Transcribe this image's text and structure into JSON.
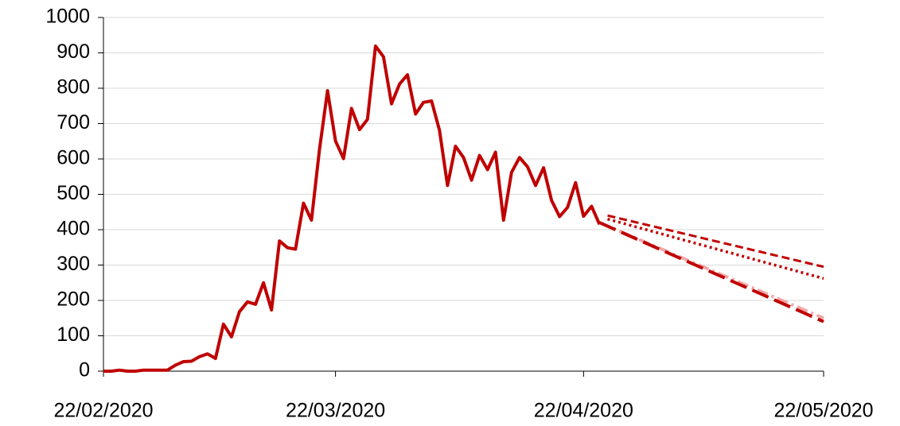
{
  "chart_data": {
    "type": "line",
    "xlim": [
      "22/02/2020",
      "22/05/2020"
    ],
    "xticks": [
      "22/02/2020",
      "22/03/2020",
      "22/04/2020",
      "22/05/2020"
    ],
    "ylim": [
      0,
      1000
    ],
    "yticks": [
      0,
      100,
      200,
      300,
      400,
      500,
      600,
      700,
      800,
      900,
      1000
    ],
    "grid": true,
    "series": [
      {
        "color": "#c00000",
        "dash": "solid",
        "x": [
          "22/02/2020",
          "23/02/2020",
          "24/02/2020",
          "25/02/2020",
          "26/02/2020",
          "27/02/2020",
          "28/02/2020",
          "29/02/2020",
          "01/03/2020",
          "02/03/2020",
          "03/03/2020",
          "04/03/2020",
          "05/03/2020",
          "06/03/2020",
          "07/03/2020",
          "08/03/2020",
          "09/03/2020",
          "10/03/2020",
          "11/03/2020",
          "12/03/2020",
          "13/03/2020",
          "14/03/2020",
          "15/03/2020",
          "16/03/2020",
          "17/03/2020",
          "18/03/2020",
          "19/03/2020",
          "20/03/2020",
          "21/03/2020",
          "22/03/2020",
          "23/03/2020",
          "24/03/2020",
          "25/03/2020",
          "26/03/2020",
          "27/03/2020",
          "28/03/2020",
          "29/03/2020",
          "30/03/2020",
          "31/03/2020",
          "01/04/2020",
          "02/04/2020",
          "03/04/2020",
          "04/04/2020",
          "05/04/2020",
          "06/04/2020",
          "07/04/2020",
          "08/04/2020",
          "09/04/2020",
          "10/04/2020",
          "11/04/2020",
          "12/04/2020",
          "13/04/2020",
          "14/04/2020",
          "15/04/2020",
          "16/04/2020",
          "17/04/2020",
          "18/04/2020",
          "19/04/2020",
          "20/04/2020",
          "21/04/2020",
          "22/04/2020",
          "23/04/2020",
          "24/04/2020"
        ],
        "values": [
          0,
          0,
          3,
          0,
          0,
          3,
          3,
          3,
          3,
          17,
          27,
          28,
          41,
          49,
          36,
          133,
          97,
          168,
          196,
          189,
          250,
          173,
          368,
          349,
          345,
          475,
          427,
          627,
          793,
          651,
          601,
          743,
          683,
          712,
          919,
          889,
          756,
          812,
          838,
          727,
          760,
          764,
          681,
          525,
          636,
          604,
          540,
          610,
          570,
          619,
          427,
          562,
          604,
          578,
          525,
          575,
          483,
          437,
          463,
          533,
          438,
          466,
          415
        ]
      },
      {
        "color": "#c00000",
        "dash": "dashed",
        "x": [
          "25/04/2020",
          "22/05/2020"
        ],
        "values": [
          440,
          295
        ]
      },
      {
        "color": "#c00000",
        "dash": "dotted",
        "x": [
          "25/04/2020",
          "22/05/2020"
        ],
        "values": [
          430,
          262
        ]
      },
      {
        "color": "#f4a6a6",
        "dash": "dashdot",
        "x": [
          "24/04/2020",
          "22/05/2020"
        ],
        "values": [
          420,
          150
        ]
      },
      {
        "color": "#c00000",
        "dash": "longdash",
        "x": [
          "24/04/2020",
          "22/05/2020"
        ],
        "values": [
          420,
          140
        ]
      }
    ]
  }
}
